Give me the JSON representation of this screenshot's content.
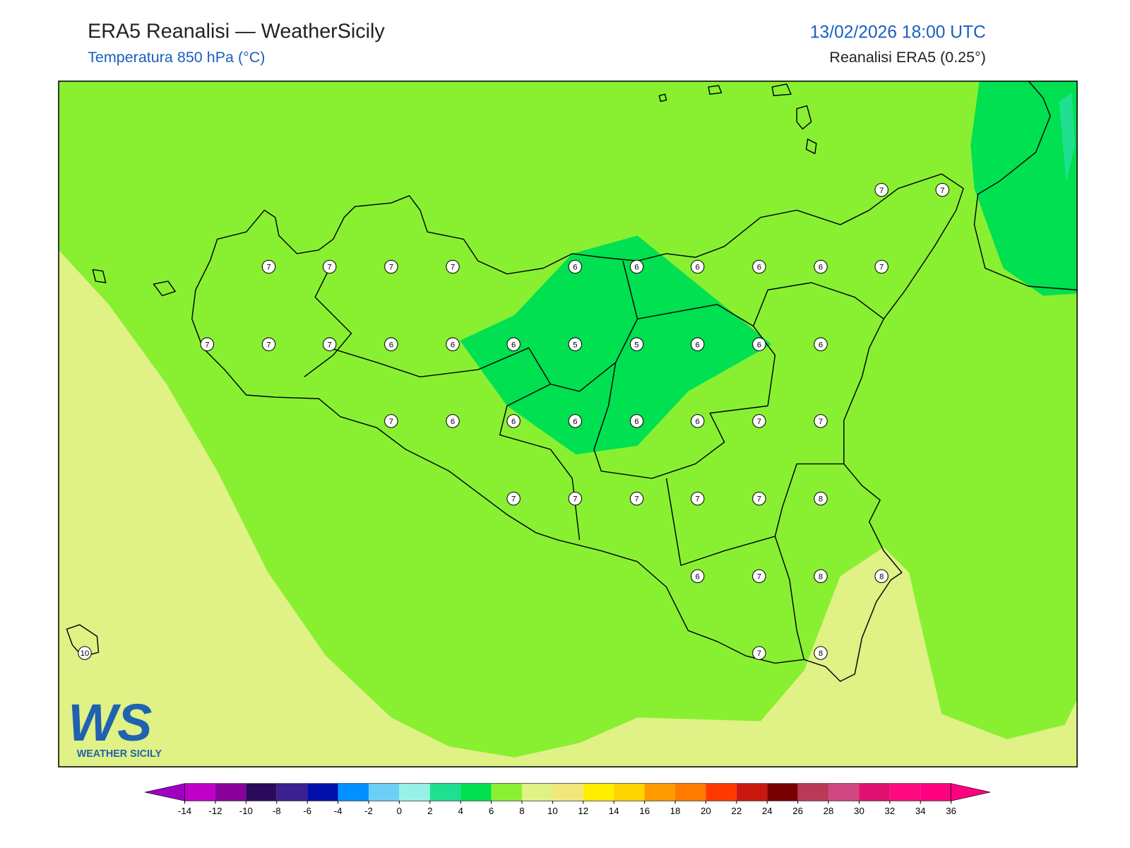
{
  "header": {
    "title": "ERA5 Reanalisi — WeatherSicily",
    "subtitle": "Temperatura 850 hPa (°C)",
    "datetime": "13/02/2026 18:00 UTC",
    "source": "Reanalisi ERA5 (0.25°)"
  },
  "stations": [
    7,
    7,
    7,
    7,
    6,
    6,
    6,
    6,
    6,
    7,
    7,
    7,
    7,
    7,
    7,
    6,
    6,
    6,
    5,
    5,
    6,
    6,
    6,
    7,
    6,
    6,
    6,
    6,
    6,
    7,
    7,
    7,
    7,
    7,
    7,
    7,
    8,
    6,
    7,
    8,
    8,
    7,
    8,
    10
  ],
  "colorbar": {
    "ticks": [
      -14,
      -12,
      -10,
      -8,
      -6,
      -4,
      -2,
      0,
      2,
      4,
      6,
      8,
      10,
      12,
      14,
      16,
      18,
      20,
      22,
      24,
      26,
      28,
      30,
      32,
      34,
      36
    ],
    "colors": [
      "#a000c0",
      "#c000c8",
      "#8a009a",
      "#2a0a5a",
      "#3a2090",
      "#0010a8",
      "#0090ff",
      "#6ccff6",
      "#98f0e8",
      "#1ee090",
      "#00e050",
      "#88f031",
      "#e0f185",
      "#f0e87a",
      "#ffee00",
      "#ffd400",
      "#ff9a00",
      "#ff7a00",
      "#ff3a00",
      "#c81810",
      "#7a0000",
      "#b83a58",
      "#d04880",
      "#e01070",
      "#ff0a80",
      "#ff0080",
      "#ff0080"
    ]
  },
  "logo": {
    "mark": "WS",
    "name": "WEATHER SICILY"
  }
}
